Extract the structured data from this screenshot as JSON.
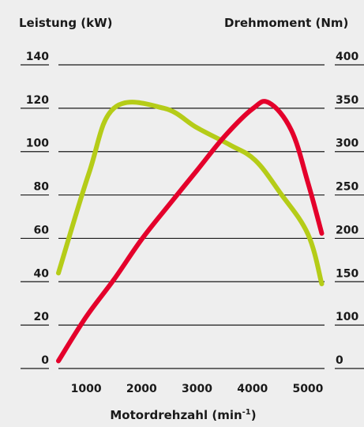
{
  "chart_data": {
    "type": "line",
    "title_left": "Leistung (kW)",
    "title_right": "Drehmoment (Nm)",
    "xlabel": "Motordrehzahl (min",
    "xlabel_sup": "-1",
    "xlabel_close": ")",
    "xlim": [
      500,
      5300
    ],
    "x_ticks": [
      "1000",
      "2000",
      "3000",
      "4000",
      "5000"
    ],
    "x_tick_values": [
      1000,
      2000,
      3000,
      4000,
      5000
    ],
    "y_left_lim": [
      0,
      140
    ],
    "y_left_ticks": [
      "0",
      "20",
      "40",
      "60",
      "80",
      "100",
      "120",
      "140"
    ],
    "y_right_lim": [
      0,
      400
    ],
    "y_right_ticks": [
      "0",
      "100",
      "150",
      "200",
      "250",
      "300",
      "350",
      "400"
    ],
    "grid": true,
    "series": [
      {
        "axis": "left",
        "color": "#b5cc18",
        "x": [
          500,
          1050,
          1500,
          2400,
          3000,
          3600,
          4050,
          4500,
          5000,
          5250
        ],
        "y": [
          44,
          90,
          120,
          120,
          111,
          103,
          96,
          81,
          62,
          39
        ]
      },
      {
        "axis": "right",
        "color": "#e4002b",
        "x": [
          500,
          1000,
          1500,
          2000,
          2500,
          3000,
          3500,
          4000,
          4300,
          4700,
          5000,
          5250
        ],
        "y": [
          10,
          68,
          117,
          170,
          216,
          261,
          306,
          342,
          350,
          314,
          245,
          178
        ]
      }
    ]
  }
}
